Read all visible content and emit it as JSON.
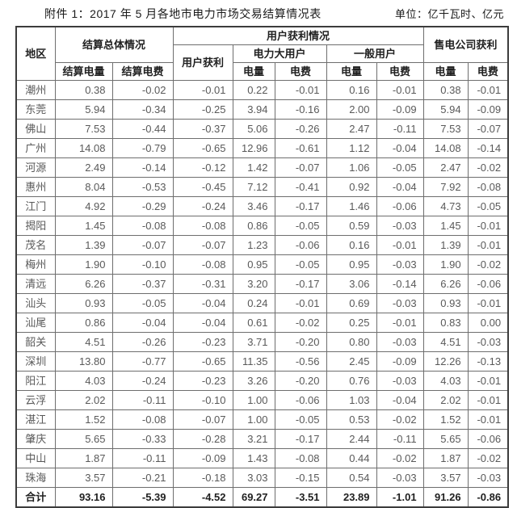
{
  "page": {
    "title": "附件 1：2017 年 5 月各地市电力市场交易结算情况表",
    "unit_label": "单位：亿千瓦时、亿元"
  },
  "colors": {
    "data_text": "#595959",
    "heading_text": "#1f1f1f",
    "inner_border": "#6e6e6e",
    "outer_border": "#3c3c3c",
    "background": "#ffffff"
  },
  "table": {
    "header": {
      "region": "地区",
      "settlement_group": "结算总体情况",
      "settlement_energy": "结算电量",
      "settlement_fee": "结算电费",
      "user_profit_group": "用户获利情况",
      "user_profit": "用户获利",
      "large_power_user": "电力大用户",
      "general_user": "一般用户",
      "retail_company_profit": "售电公司获利",
      "energy": "电量",
      "fee": "电费"
    },
    "rows": [
      {
        "region": "潮州",
        "values": [
          "0.38",
          "-0.02",
          "-0.01",
          "0.22",
          "-0.01",
          "0.16",
          "-0.01",
          "0.38",
          "-0.01"
        ]
      },
      {
        "region": "东莞",
        "values": [
          "5.94",
          "-0.34",
          "-0.25",
          "3.94",
          "-0.16",
          "2.00",
          "-0.09",
          "5.94",
          "-0.09"
        ]
      },
      {
        "region": "佛山",
        "values": [
          "7.53",
          "-0.44",
          "-0.37",
          "5.06",
          "-0.26",
          "2.47",
          "-0.11",
          "7.53",
          "-0.07"
        ]
      },
      {
        "region": "广州",
        "values": [
          "14.08",
          "-0.79",
          "-0.65",
          "12.96",
          "-0.61",
          "1.12",
          "-0.04",
          "14.08",
          "-0.14"
        ]
      },
      {
        "region": "河源",
        "values": [
          "2.49",
          "-0.14",
          "-0.12",
          "1.42",
          "-0.07",
          "1.06",
          "-0.05",
          "2.47",
          "-0.02"
        ]
      },
      {
        "region": "惠州",
        "values": [
          "8.04",
          "-0.53",
          "-0.45",
          "7.12",
          "-0.41",
          "0.92",
          "-0.04",
          "7.92",
          "-0.08"
        ]
      },
      {
        "region": "江门",
        "values": [
          "4.92",
          "-0.29",
          "-0.24",
          "3.46",
          "-0.17",
          "1.46",
          "-0.06",
          "4.73",
          "-0.05"
        ]
      },
      {
        "region": "揭阳",
        "values": [
          "1.45",
          "-0.08",
          "-0.08",
          "0.86",
          "-0.05",
          "0.59",
          "-0.03",
          "1.45",
          "-0.01"
        ]
      },
      {
        "region": "茂名",
        "values": [
          "1.39",
          "-0.07",
          "-0.07",
          "1.23",
          "-0.06",
          "0.16",
          "-0.01",
          "1.39",
          "-0.01"
        ]
      },
      {
        "region": "梅州",
        "values": [
          "1.90",
          "-0.10",
          "-0.08",
          "0.95",
          "-0.05",
          "0.95",
          "-0.03",
          "1.90",
          "-0.02"
        ]
      },
      {
        "region": "清远",
        "values": [
          "6.26",
          "-0.37",
          "-0.31",
          "3.20",
          "-0.17",
          "3.06",
          "-0.14",
          "6.26",
          "-0.06"
        ]
      },
      {
        "region": "汕头",
        "values": [
          "0.93",
          "-0.05",
          "-0.04",
          "0.24",
          "-0.01",
          "0.69",
          "-0.03",
          "0.93",
          "-0.01"
        ]
      },
      {
        "region": "汕尾",
        "values": [
          "0.86",
          "-0.04",
          "-0.04",
          "0.61",
          "-0.02",
          "0.25",
          "-0.01",
          "0.83",
          "0.00"
        ]
      },
      {
        "region": "韶关",
        "values": [
          "4.51",
          "-0.26",
          "-0.23",
          "3.71",
          "-0.20",
          "0.80",
          "-0.03",
          "4.51",
          "-0.03"
        ]
      },
      {
        "region": "深圳",
        "values": [
          "13.80",
          "-0.77",
          "-0.65",
          "11.35",
          "-0.56",
          "2.45",
          "-0.09",
          "12.26",
          "-0.13"
        ]
      },
      {
        "region": "阳江",
        "values": [
          "4.03",
          "-0.24",
          "-0.23",
          "3.26",
          "-0.20",
          "0.76",
          "-0.03",
          "4.03",
          "-0.01"
        ]
      },
      {
        "region": "云浮",
        "values": [
          "2.02",
          "-0.11",
          "-0.10",
          "1.00",
          "-0.06",
          "1.03",
          "-0.04",
          "2.02",
          "-0.01"
        ]
      },
      {
        "region": "湛江",
        "values": [
          "1.52",
          "-0.08",
          "-0.07",
          "1.00",
          "-0.05",
          "0.53",
          "-0.02",
          "1.52",
          "-0.01"
        ]
      },
      {
        "region": "肇庆",
        "values": [
          "5.65",
          "-0.33",
          "-0.28",
          "3.21",
          "-0.17",
          "2.44",
          "-0.11",
          "5.65",
          "-0.06"
        ]
      },
      {
        "region": "中山",
        "values": [
          "1.87",
          "-0.11",
          "-0.09",
          "1.43",
          "-0.08",
          "0.44",
          "-0.02",
          "1.87",
          "-0.02"
        ]
      },
      {
        "region": "珠海",
        "values": [
          "3.57",
          "-0.21",
          "-0.18",
          "3.03",
          "-0.15",
          "0.54",
          "-0.03",
          "3.57",
          "-0.03"
        ]
      }
    ],
    "total_row": {
      "region": "合计",
      "values": [
        "93.16",
        "-5.39",
        "-4.52",
        "69.27",
        "-3.51",
        "23.89",
        "-1.01",
        "91.26",
        "-0.86"
      ]
    }
  }
}
